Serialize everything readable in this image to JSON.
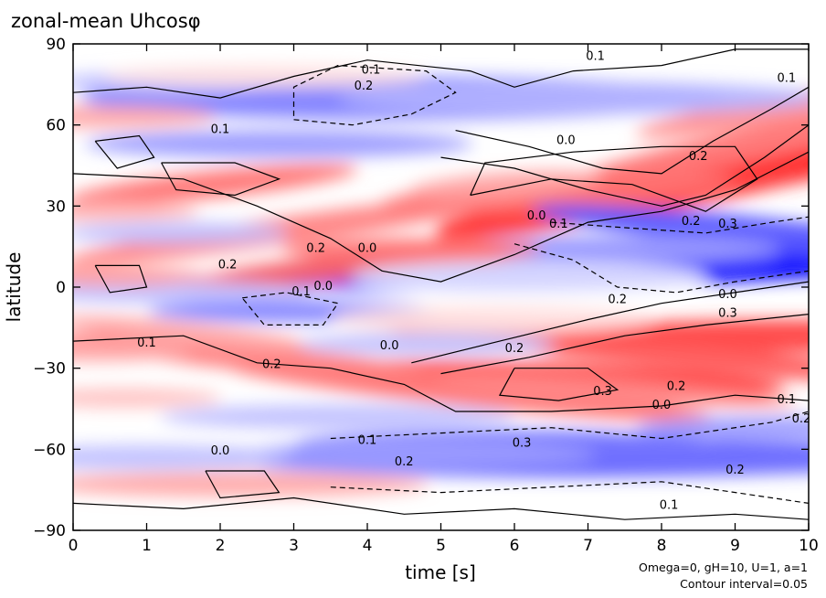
{
  "chart_data": {
    "type": "heatmap",
    "title": "zonal-mean Uhcosφ",
    "xlabel": "time [s]",
    "ylabel": "latitude",
    "xlim": [
      0,
      10
    ],
    "ylim": [
      -90,
      90
    ],
    "x_ticks": [
      "0",
      "1",
      "2",
      "3",
      "4",
      "5",
      "6",
      "7",
      "8",
      "9",
      "10"
    ],
    "y_ticks": [
      "90",
      "60",
      "30",
      "0",
      "−30",
      "−60",
      "−90"
    ],
    "annotations": [
      "Omega=0, gH=10, U=1, a=1",
      "Contour interval=0.05"
    ],
    "colormap": {
      "negative": "#0000ff",
      "zero": "#ffffff",
      "positive": "#ff0000"
    },
    "value_range": [
      -0.4,
      0.4
    ],
    "contour_interval": 0.05,
    "contour_labels": [
      {
        "t": 7.1,
        "lat": 84,
        "text": "0.1"
      },
      {
        "t": 4.05,
        "lat": 79,
        "text": "0.1"
      },
      {
        "t": 3.95,
        "lat": 73,
        "text": "0.2"
      },
      {
        "t": 9.7,
        "lat": 76,
        "text": "0.1"
      },
      {
        "t": 2.0,
        "lat": 57,
        "text": "0.1"
      },
      {
        "t": 6.7,
        "lat": 53,
        "text": "0.0"
      },
      {
        "t": 8.5,
        "lat": 47,
        "text": "0.2"
      },
      {
        "t": 6.3,
        "lat": 25,
        "text": "0.0"
      },
      {
        "t": 6.6,
        "lat": 22,
        "text": "0.1"
      },
      {
        "t": 8.4,
        "lat": 23,
        "text": "0.2"
      },
      {
        "t": 8.9,
        "lat": 22,
        "text": "0.3"
      },
      {
        "t": 3.3,
        "lat": 13,
        "text": "0.2"
      },
      {
        "t": 4.0,
        "lat": 13,
        "text": "0.0"
      },
      {
        "t": 2.1,
        "lat": 7,
        "text": "0.2"
      },
      {
        "t": 3.1,
        "lat": -3,
        "text": "0.1"
      },
      {
        "t": 3.4,
        "lat": -1,
        "text": "0.0"
      },
      {
        "t": 7.4,
        "lat": -6,
        "text": "0.2"
      },
      {
        "t": 8.9,
        "lat": -4,
        "text": "0.0"
      },
      {
        "t": 8.9,
        "lat": -11,
        "text": "0.3"
      },
      {
        "t": 6.0,
        "lat": -24,
        "text": "0.2"
      },
      {
        "t": 1.0,
        "lat": -22,
        "text": "0.1"
      },
      {
        "t": 4.3,
        "lat": -23,
        "text": "0.0"
      },
      {
        "t": 2.7,
        "lat": -30,
        "text": "0.2"
      },
      {
        "t": 7.2,
        "lat": -40,
        "text": "0.3"
      },
      {
        "t": 8.2,
        "lat": -38,
        "text": "0.2"
      },
      {
        "t": 8.0,
        "lat": -45,
        "text": "0.0"
      },
      {
        "t": 9.7,
        "lat": -43,
        "text": "0.1"
      },
      {
        "t": 9.9,
        "lat": -50,
        "text": "0.2"
      },
      {
        "t": 4.0,
        "lat": -58,
        "text": "0.1"
      },
      {
        "t": 6.1,
        "lat": -59,
        "text": "0.3"
      },
      {
        "t": 4.5,
        "lat": -66,
        "text": "0.2"
      },
      {
        "t": 2.0,
        "lat": -62,
        "text": "0.0"
      },
      {
        "t": 9.0,
        "lat": -69,
        "text": "0.2"
      },
      {
        "t": 8.1,
        "lat": -82,
        "text": "0.1"
      }
    ]
  }
}
